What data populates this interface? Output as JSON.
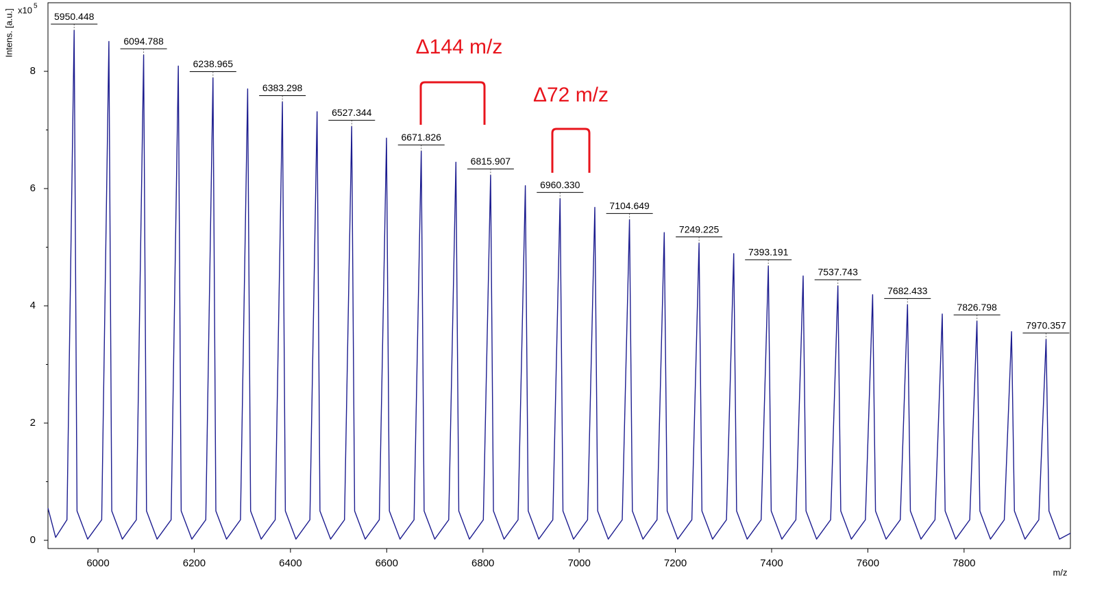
{
  "chart_data": {
    "type": "line",
    "y_label": "Intens. [a.u.]",
    "y_multiplier": "x10",
    "y_exponent": "5",
    "x_label": "m/z",
    "color": "#1c1c8f",
    "xlim": [
      5896,
      8021
    ],
    "ylim": [
      -0.14,
      9.17
    ],
    "xticks": [
      6000,
      6200,
      6400,
      6600,
      6800,
      7000,
      7200,
      7400,
      7600,
      7800
    ],
    "yticks": [
      0,
      2,
      4,
      6,
      8
    ],
    "yminorticks": [
      1,
      3,
      5,
      7
    ],
    "x": [
      5896,
      5912,
      5935.4,
      5950.4,
      5956.4,
      5978.4,
      6007.6,
      6022.6,
      6028.6,
      6050.6,
      6079.8,
      6094.8,
      6100.8,
      6122.8,
      6151.9,
      6166.9,
      6172.9,
      6194.9,
      6224.0,
      6239.0,
      6245.0,
      6267.0,
      6296.1,
      6311.1,
      6317.1,
      6339.1,
      6368.3,
      6383.3,
      6389.3,
      6411.3,
      6440.3,
      6455.3,
      6461.3,
      6483.3,
      6512.3,
      6527.3,
      6533.3,
      6555.3,
      6584.6,
      6599.6,
      6605.6,
      6627.6,
      6656.8,
      6671.8,
      6677.8,
      6699.8,
      6728.9,
      6743.9,
      6749.9,
      6771.9,
      6800.9,
      6815.9,
      6821.9,
      6843.9,
      6873.1,
      6888.1,
      6894.1,
      6916.1,
      6945.3,
      6960.3,
      6966.3,
      6988.3,
      7017.5,
      7032.5,
      7038.5,
      7060.5,
      7089.6,
      7104.6,
      7110.6,
      7132.6,
      7161.9,
      7176.9,
      7182.9,
      7204.9,
      7234.2,
      7249.2,
      7255.2,
      7277.2,
      7306.2,
      7321.2,
      7327.2,
      7349.2,
      7378.2,
      7393.2,
      7399.2,
      7421.2,
      7450.5,
      7465.5,
      7471.5,
      7493.5,
      7522.7,
      7537.7,
      7543.7,
      7565.7,
      7594.9,
      7609.9,
      7615.9,
      7637.9,
      7667.4,
      7682.4,
      7688.4,
      7710.4,
      7739.6,
      7754.6,
      7760.6,
      7782.6,
      7811.8,
      7826.8,
      7832.8,
      7854.8,
      7883.6,
      7898.6,
      7904.6,
      7926.6,
      7955.4,
      7970.4,
      7976.4,
      7998.4,
      8021
    ],
    "values": [
      0.55,
      0.05,
      0.35,
      8.7,
      0.5,
      0.02,
      0.35,
      8.51,
      0.5,
      0.02,
      0.35,
      8.28,
      0.5,
      0.02,
      0.35,
      8.09,
      0.5,
      0.02,
      0.35,
      7.89,
      0.5,
      0.02,
      0.35,
      7.7,
      0.5,
      0.02,
      0.35,
      7.48,
      0.5,
      0.02,
      0.35,
      7.31,
      0.5,
      0.02,
      0.35,
      7.06,
      0.5,
      0.02,
      0.35,
      6.86,
      0.5,
      0.02,
      0.35,
      6.64,
      0.5,
      0.02,
      0.35,
      6.45,
      0.5,
      0.02,
      0.35,
      6.23,
      0.5,
      0.02,
      0.35,
      6.05,
      0.5,
      0.02,
      0.35,
      5.83,
      0.5,
      0.02,
      0.35,
      5.68,
      0.5,
      0.02,
      0.35,
      5.47,
      0.5,
      0.02,
      0.35,
      5.25,
      0.5,
      0.02,
      0.35,
      5.07,
      0.5,
      0.02,
      0.35,
      4.89,
      0.5,
      0.02,
      0.35,
      4.68,
      0.5,
      0.02,
      0.35,
      4.51,
      0.5,
      0.02,
      0.35,
      4.34,
      0.5,
      0.02,
      0.35,
      4.19,
      0.5,
      0.02,
      0.35,
      4.02,
      0.5,
      0.02,
      0.35,
      3.86,
      0.5,
      0.02,
      0.35,
      3.74,
      0.5,
      0.02,
      0.35,
      3.56,
      0.5,
      0.02,
      0.35,
      3.43,
      0.5,
      0.02,
      0.12
    ],
    "labeled_peaks": {
      "x": [
        5950.448,
        6094.788,
        6238.965,
        6383.298,
        6527.344,
        6671.826,
        6815.907,
        6960.33,
        7104.649,
        7249.225,
        7393.191,
        7537.743,
        7682.433,
        7826.798,
        7970.357
      ],
      "values": [
        8.7,
        8.28,
        7.89,
        7.48,
        7.06,
        6.64,
        6.23,
        5.83,
        5.47,
        5.07,
        4.68,
        4.34,
        4.02,
        3.74,
        3.43
      ],
      "value_labels": [
        "5950.448",
        "6094.788",
        "6238.965",
        "6383.298",
        "6527.344",
        "6671.826",
        "6815.907",
        "6960.330",
        "7104.649",
        "7249.225",
        "7393.191",
        "7537.743",
        "7682.433",
        "7826.798",
        "7970.357"
      ]
    },
    "annotations": [
      "Δ144 m/z",
      "Δ72 m/z"
    ]
  }
}
